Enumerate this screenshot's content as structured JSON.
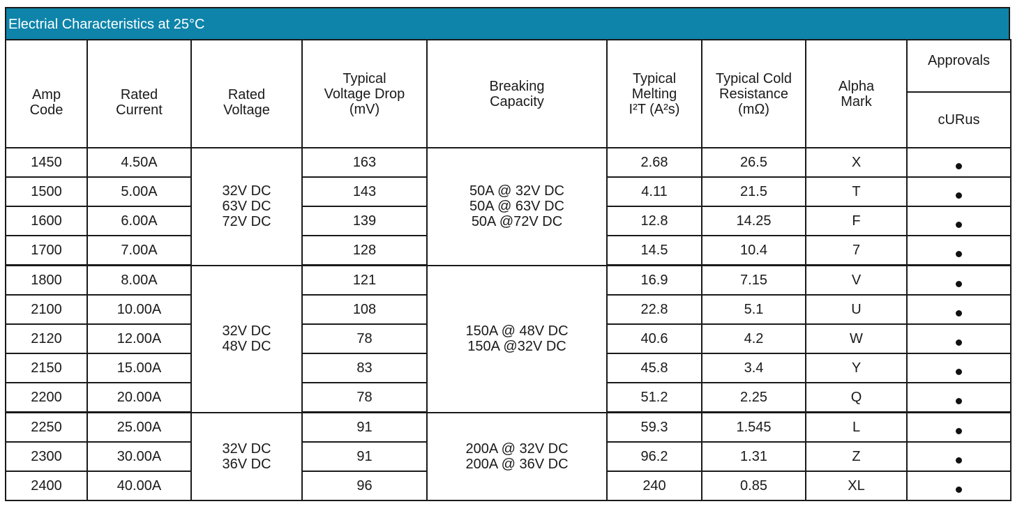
{
  "title": "Electrial Characteristics at 25°C",
  "headers": {
    "amp_code": "Amp\nCode",
    "rated_current": "Rated\nCurrent",
    "rated_voltage": "Rated\nVoltage",
    "voltage_drop": "Typical\nVoltage Drop\n(mV)",
    "breaking_capacity": "Breaking\nCapacity",
    "melting": "Typical\nMelting\nI²T (A²s)",
    "cold_resistance": "Typical Cold\nResistance\n(mΩ)",
    "alpha_mark": "Alpha\nMark",
    "approvals": "Approvals",
    "curus": "cURus"
  },
  "groups": [
    {
      "rated_voltage": "32V DC\n63V DC\n72V DC",
      "breaking_capacity": "50A @ 32V DC\n50A @ 63V DC\n50A @72V DC"
    },
    {
      "rated_voltage": "32V DC\n48V DC",
      "breaking_capacity": "150A @ 48V DC\n150A @32V DC"
    },
    {
      "rated_voltage": "32V DC\n36V DC",
      "breaking_capacity": "200A @ 32V DC\n200A @ 36V DC"
    }
  ],
  "rows": [
    {
      "amp_code": "1450",
      "rated_current": "4.50A",
      "voltage_drop": "163",
      "melting": "2.68",
      "cold_resistance": "26.5",
      "alpha_mark": "X",
      "curus": true
    },
    {
      "amp_code": "1500",
      "rated_current": "5.00A",
      "voltage_drop": "143",
      "melting": "4.11",
      "cold_resistance": "21.5",
      "alpha_mark": "T",
      "curus": true
    },
    {
      "amp_code": "1600",
      "rated_current": "6.00A",
      "voltage_drop": "139",
      "melting": "12.8",
      "cold_resistance": "14.25",
      "alpha_mark": "F",
      "curus": true
    },
    {
      "amp_code": "1700",
      "rated_current": "7.00A",
      "voltage_drop": "128",
      "melting": "14.5",
      "cold_resistance": "10.4",
      "alpha_mark": "7",
      "curus": true
    },
    {
      "amp_code": "1800",
      "rated_current": "8.00A",
      "voltage_drop": "121",
      "melting": "16.9",
      "cold_resistance": "7.15",
      "alpha_mark": "V",
      "curus": true
    },
    {
      "amp_code": "2100",
      "rated_current": "10.00A",
      "voltage_drop": "108",
      "melting": "22.8",
      "cold_resistance": "5.1",
      "alpha_mark": "U",
      "curus": true
    },
    {
      "amp_code": "2120",
      "rated_current": "12.00A",
      "voltage_drop": "78",
      "melting": "40.6",
      "cold_resistance": "4.2",
      "alpha_mark": "W",
      "curus": true
    },
    {
      "amp_code": "2150",
      "rated_current": "15.00A",
      "voltage_drop": "83",
      "melting": "45.8",
      "cold_resistance": "3.4",
      "alpha_mark": "Y",
      "curus": true
    },
    {
      "amp_code": "2200",
      "rated_current": "20.00A",
      "voltage_drop": "78",
      "melting": "51.2",
      "cold_resistance": "2.25",
      "alpha_mark": "Q",
      "curus": true
    },
    {
      "amp_code": "2250",
      "rated_current": "25.00A",
      "voltage_drop": "91",
      "melting": "59.3",
      "cold_resistance": "1.545",
      "alpha_mark": "L",
      "curus": true
    },
    {
      "amp_code": "2300",
      "rated_current": "30.00A",
      "voltage_drop": "91",
      "melting": "96.2",
      "cold_resistance": "1.31",
      "alpha_mark": "Z",
      "curus": true
    },
    {
      "amp_code": "2400",
      "rated_current": "40.00A",
      "voltage_drop": "96",
      "melting": "240",
      "cold_resistance": "0.85",
      "alpha_mark": "XL",
      "curus": true
    }
  ]
}
